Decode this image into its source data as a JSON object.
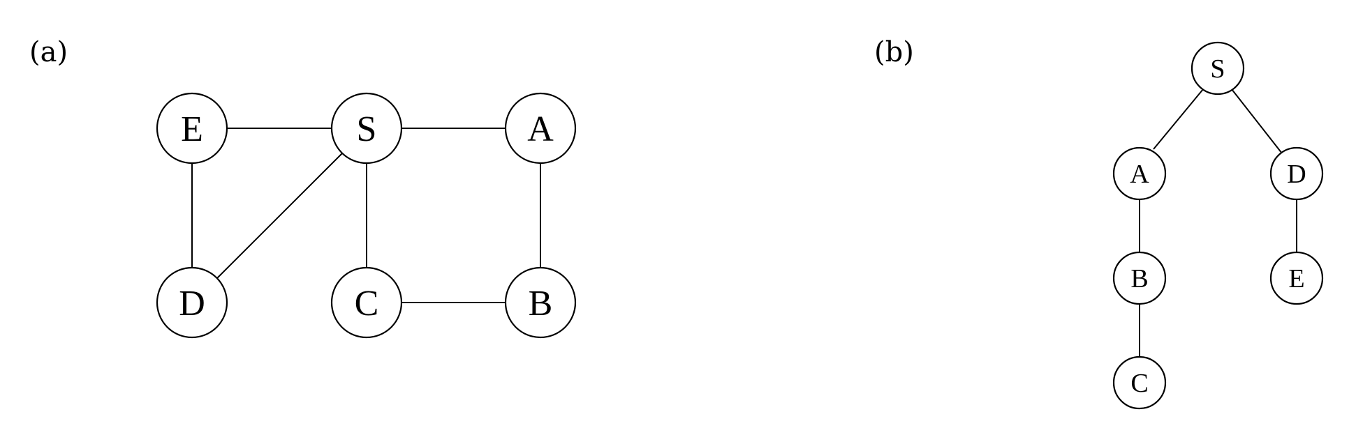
{
  "panels": [
    {
      "id": "a",
      "label": "(a)",
      "nodes": [
        "E",
        "S",
        "A",
        "D",
        "C",
        "B"
      ],
      "edges": [
        [
          "E",
          "S"
        ],
        [
          "S",
          "A"
        ],
        [
          "E",
          "D"
        ],
        [
          "S",
          "D"
        ],
        [
          "S",
          "C"
        ],
        [
          "A",
          "B"
        ],
        [
          "C",
          "B"
        ]
      ]
    },
    {
      "id": "b",
      "label": "(b)",
      "nodes": [
        "S",
        "A",
        "D",
        "B",
        "E",
        "C"
      ],
      "edges": [
        [
          "S",
          "A"
        ],
        [
          "S",
          "D"
        ],
        [
          "A",
          "B"
        ],
        [
          "B",
          "C"
        ],
        [
          "D",
          "E"
        ]
      ]
    }
  ]
}
